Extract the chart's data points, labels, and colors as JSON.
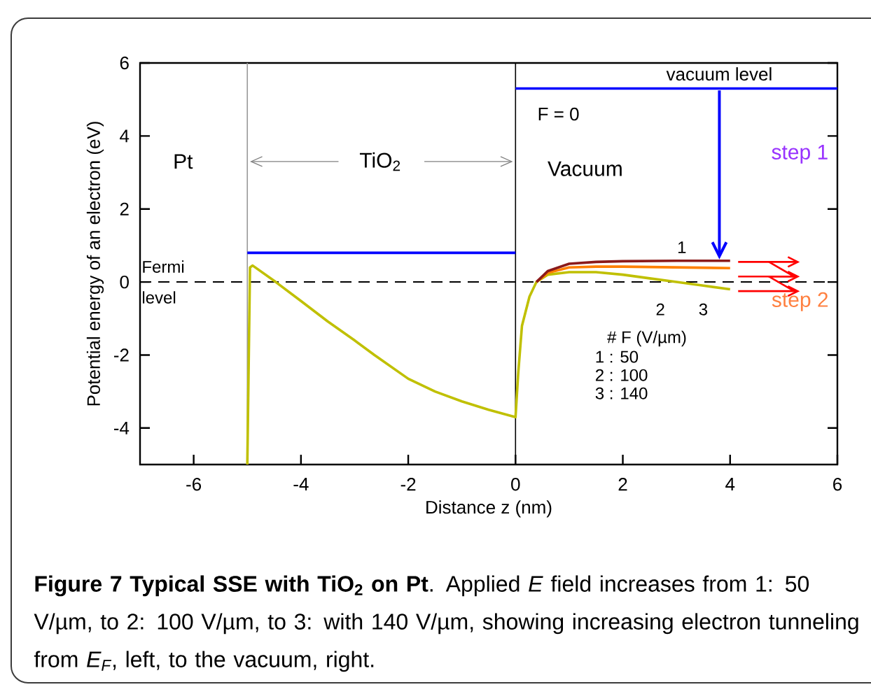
{
  "chart_data": {
    "type": "line",
    "xlabel": "Distance z  (nm)",
    "ylabel": "Potential energy of an electron (eV)",
    "xlim": [
      -7,
      6
    ],
    "ylim": [
      -5,
      6
    ],
    "xticks": [
      -6,
      -4,
      -2,
      0,
      2,
      4,
      6
    ],
    "yticks": [
      -4,
      -2,
      0,
      2,
      4,
      6
    ],
    "grid": false,
    "series": [
      {
        "color": "#0000ff",
        "x": [
          -5,
          0
        ],
        "values": [
          0.8,
          0.8
        ]
      },
      {
        "color": "#0000ff",
        "x": [
          0,
          6
        ],
        "values": [
          5.3,
          5.3
        ]
      },
      {
        "color": "#c0c000",
        "x": [
          -5,
          -4.95,
          -4.9,
          -4.47,
          -4,
          -3.5,
          -3,
          -2.63,
          -2,
          -1.5,
          -1,
          -0.5,
          0,
          0.05,
          0.12,
          0.26,
          0.39,
          0.6,
          1,
          1.5,
          2,
          2.5,
          3,
          3.5,
          4
        ],
        "values": [
          -5,
          0.4,
          0.45,
          0,
          -0.52,
          -1.08,
          -1.6,
          -2.0,
          -2.65,
          -3.0,
          -3.27,
          -3.5,
          -3.7,
          -2.5,
          -1.2,
          -0.4,
          0,
          0.2,
          0.27,
          0.27,
          0.2,
          0.1,
          0,
          -0.1,
          -0.2
        ]
      },
      {
        "color": "#ff8000",
        "x": [
          0.39,
          0.6,
          1,
          1.5,
          2,
          3,
          4
        ],
        "values": [
          0,
          0.25,
          0.4,
          0.42,
          0.42,
          0.4,
          0.38
        ]
      },
      {
        "color": "#8b1a1a",
        "x": [
          0.39,
          0.6,
          1,
          1.5,
          2,
          3,
          4
        ],
        "values": [
          0,
          0.3,
          0.5,
          0.55,
          0.57,
          0.58,
          0.58
        ]
      }
    ],
    "ref_lines": [
      {
        "axis": "x",
        "value": -5,
        "color": "#999999"
      },
      {
        "axis": "x",
        "value": 0,
        "color": "#000000"
      },
      {
        "axis": "y",
        "value": 0,
        "label": "Fermi level",
        "color": "#000000",
        "line_style": "dashed"
      }
    ],
    "annotations": [
      "Pt",
      {
        "text": "TiO$_{2}$",
        "x": -5,
        "y": 3.3
      },
      "Vacuum",
      "F = 0",
      "vacuum level",
      "step 1",
      {
        "text": "step 2",
        "x": 4,
        "y": 0.15
      },
      "# F (V/µm)",
      "1 :   50",
      "2 : 100",
      "3 : 140",
      "1",
      "2",
      "3",
      "**Figure 7 Typical SSE with TiO$_{2}$ on Pt**. Applied *E* field increases from 1: 50 V/µm, to 2: 100 V/µm, to 3: with 140 V/µm, showing increasing electron tunneling from *E$_{F}$*, left, to the vacuum, right."
    ]
  }
}
